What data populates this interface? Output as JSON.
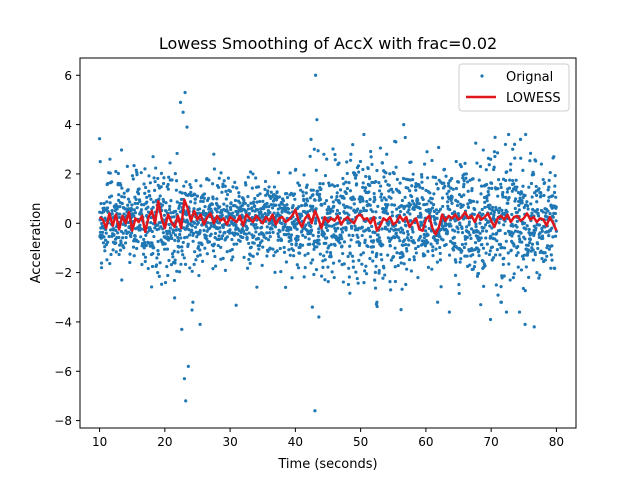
{
  "chart_data": {
    "type": "scatter",
    "title": "Lowess Smoothing of AccX with frac=0.02",
    "xlabel": "Time (seconds)",
    "ylabel": "Acceleration",
    "xlim": [
      7,
      83
    ],
    "ylim": [
      -8.3,
      6.7
    ],
    "xticks": [
      10,
      20,
      30,
      40,
      50,
      60,
      70,
      80
    ],
    "yticks": [
      -8,
      -6,
      -4,
      -2,
      0,
      2,
      4,
      6
    ],
    "grid": false,
    "legend_position": "top-right",
    "series": [
      {
        "name": "Orignal",
        "kind": "scatter",
        "color": "#1f77b4",
        "x_range": [
          10,
          80
        ],
        "notable_points": [
          {
            "x": 10.1,
            "y": 2.5
          },
          {
            "x": 10.3,
            "y": -1.8
          },
          {
            "x": 12.5,
            "y": 2.1
          },
          {
            "x": 13.4,
            "y": -2.3
          },
          {
            "x": 18.2,
            "y": 2.7
          },
          {
            "x": 18.9,
            "y": -2.0
          },
          {
            "x": 22.4,
            "y": 4.9
          },
          {
            "x": 22.6,
            "y": -4.3
          },
          {
            "x": 22.8,
            "y": 4.5
          },
          {
            "x": 23.0,
            "y": -6.3
          },
          {
            "x": 23.1,
            "y": 5.3
          },
          {
            "x": 23.2,
            "y": -7.2
          },
          {
            "x": 23.4,
            "y": 3.9
          },
          {
            "x": 23.6,
            "y": -5.8
          },
          {
            "x": 24.3,
            "y": -3.2
          },
          {
            "x": 25.4,
            "y": -4.1
          },
          {
            "x": 27.6,
            "y": 2.2
          },
          {
            "x": 33.5,
            "y": 2.0
          },
          {
            "x": 38.5,
            "y": -2.6
          },
          {
            "x": 42.4,
            "y": 3.4
          },
          {
            "x": 42.6,
            "y": -3.4
          },
          {
            "x": 42.9,
            "y": 3.0
          },
          {
            "x": 43.1,
            "y": 6.0
          },
          {
            "x": 43.0,
            "y": -7.6
          },
          {
            "x": 43.3,
            "y": 4.2
          },
          {
            "x": 43.6,
            "y": -3.8
          },
          {
            "x": 44.8,
            "y": 2.6
          },
          {
            "x": 48.5,
            "y": 2.8
          },
          {
            "x": 50.5,
            "y": 3.6
          },
          {
            "x": 52.5,
            "y": -3.2
          },
          {
            "x": 54.0,
            "y": 2.8
          },
          {
            "x": 55.4,
            "y": 3.3
          },
          {
            "x": 56.6,
            "y": 4.0
          },
          {
            "x": 56.2,
            "y": -3.5
          },
          {
            "x": 59.8,
            "y": 2.4
          },
          {
            "x": 61.8,
            "y": -3.2
          },
          {
            "x": 63.6,
            "y": -3.6
          },
          {
            "x": 66.2,
            "y": 2.0
          },
          {
            "x": 68.4,
            "y": -3.3
          },
          {
            "x": 69.9,
            "y": -3.9
          },
          {
            "x": 70.5,
            "y": 2.9
          },
          {
            "x": 71.5,
            "y": -3.2
          },
          {
            "x": 73.3,
            "y": 3.0
          },
          {
            "x": 74.5,
            "y": 3.4
          },
          {
            "x": 75.2,
            "y": -4.1
          },
          {
            "x": 76.6,
            "y": -4.2
          },
          {
            "x": 77.7,
            "y": 2.4
          },
          {
            "x": 79.6,
            "y": 2.7
          }
        ]
      },
      {
        "name": "LOWESS",
        "kind": "line",
        "color": "#e0161d",
        "x": [
          10,
          10.5,
          11,
          11.5,
          12,
          12.5,
          13,
          13.5,
          14,
          14.5,
          15,
          15.5,
          16,
          16.5,
          17,
          17.5,
          18,
          18.5,
          19,
          19.5,
          20,
          20.5,
          21,
          21.5,
          22,
          22.5,
          23,
          23.5,
          24,
          24.5,
          25,
          25.5,
          26,
          26.5,
          27,
          27.5,
          28,
          28.5,
          29,
          29.5,
          30,
          30.5,
          31,
          31.5,
          32,
          32.5,
          33,
          33.5,
          34,
          34.5,
          35,
          35.5,
          36,
          36.5,
          37,
          37.5,
          38,
          38.5,
          39,
          39.5,
          40,
          40.5,
          41,
          41.5,
          42,
          42.5,
          43,
          43.5,
          44,
          44.5,
          45,
          45.5,
          46,
          46.5,
          47,
          47.5,
          48,
          48.5,
          49,
          49.5,
          50,
          50.5,
          51,
          51.5,
          52,
          52.5,
          53,
          53.5,
          54,
          54.5,
          55,
          55.5,
          56,
          56.5,
          57,
          57.5,
          58,
          58.5,
          59,
          59.5,
          60,
          60.5,
          61,
          61.5,
          62,
          62.5,
          63,
          63.5,
          64,
          64.5,
          65,
          65.5,
          66,
          66.5,
          67,
          67.5,
          68,
          68.5,
          69,
          69.5,
          70,
          70.5,
          71,
          71.5,
          72,
          72.5,
          73,
          73.5,
          74,
          74.5,
          75,
          75.5,
          76,
          76.5,
          77,
          77.5,
          78,
          78.5,
          79,
          79.5,
          80
        ],
        "y": [
          0.25,
          0.15,
          -0.2,
          0.4,
          -0.1,
          0.35,
          -0.25,
          0.3,
          0.0,
          0.45,
          -0.3,
          0.2,
          0.05,
          0.3,
          -0.35,
          0.25,
          0.5,
          0.0,
          0.9,
          0.2,
          -0.2,
          0.35,
          0.05,
          -0.15,
          0.3,
          -0.2,
          0.95,
          0.6,
          0.1,
          0.5,
          0.15,
          0.35,
          -0.05,
          0.25,
          0.4,
          0.0,
          0.3,
          0.1,
          0.2,
          -0.05,
          0.25,
          0.15,
          0.05,
          0.3,
          -0.1,
          0.35,
          0.2,
          0.05,
          0.3,
          0.15,
          0.0,
          0.25,
          0.1,
          0.35,
          -0.05,
          0.2,
          0.25,
          0.05,
          0.15,
          0.3,
          0.55,
          0.1,
          -0.15,
          0.2,
          0.35,
          0.0,
          0.5,
          0.2,
          -0.2,
          0.25,
          0.05,
          0.2,
          0.1,
          0.3,
          -0.05,
          0.15,
          0.25,
          0.1,
          0.0,
          0.3,
          0.35,
          0.15,
          0.2,
          0.0,
          0.25,
          -0.3,
          -0.1,
          0.2,
          0.1,
          0.25,
          -0.05,
          0.05,
          0.3,
          0.1,
          0.25,
          -0.15,
          0.05,
          0.2,
          -0.25,
          -0.3,
          0.15,
          0.3,
          -0.2,
          -0.45,
          -0.15,
          0.35,
          0.1,
          0.3,
          0.2,
          0.35,
          0.15,
          0.25,
          0.45,
          0.2,
          0.3,
          0.05,
          0.35,
          0.15,
          0.25,
          0.4,
          0.1,
          -0.15,
          0.2,
          0.3,
          0.15,
          0.35,
          0.05,
          0.25,
          0.3,
          0.1,
          0.2,
          0.4,
          0.15,
          0.25,
          0.05,
          0.2,
          0.15,
          -0.1,
          0.25,
          0.0,
          -0.3
        ]
      }
    ]
  }
}
